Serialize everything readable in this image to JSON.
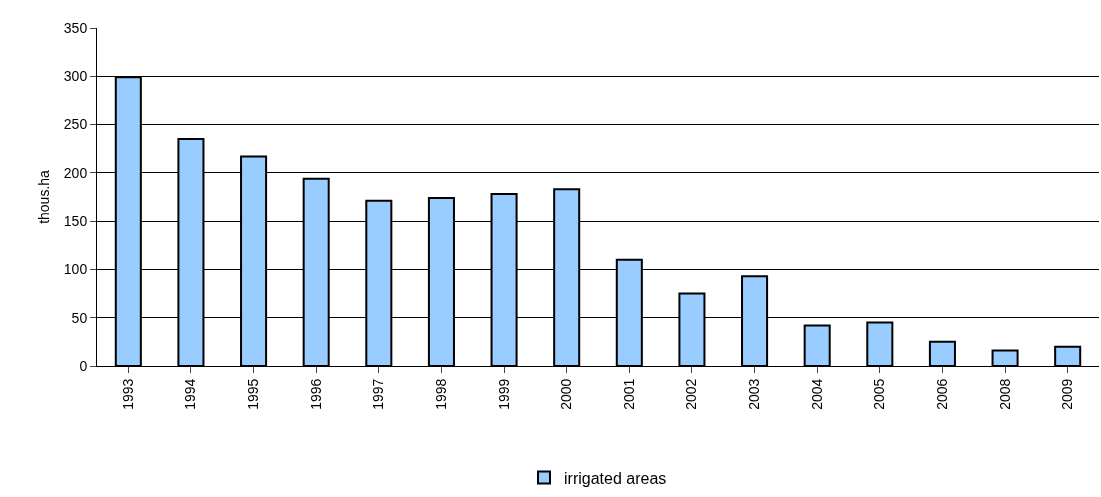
{
  "chart_data": {
    "type": "bar",
    "ylabel": "thous.ha",
    "categories": [
      "1993",
      "1994",
      "1995",
      "1996",
      "1997",
      "1998",
      "1999",
      "2000",
      "2001",
      "2002",
      "2003",
      "2004",
      "2005",
      "2006",
      "2008",
      "2009"
    ],
    "series": [
      {
        "name": "irrigated areas",
        "color": "#99ccff",
        "values": [
          299,
          235,
          217,
          194,
          171,
          174,
          178,
          183,
          110,
          75,
          93,
          42,
          45,
          25,
          16,
          20
        ]
      }
    ],
    "ylim": [
      0,
      350
    ],
    "yticks": [
      0,
      50,
      100,
      150,
      200,
      250,
      300,
      350
    ],
    "grid": "y",
    "legend": "bottom"
  }
}
